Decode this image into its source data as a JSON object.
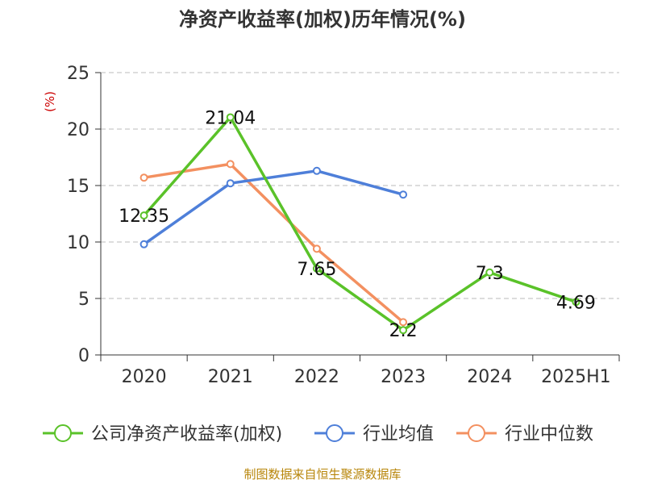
{
  "chart_data": {
    "type": "line",
    "title": "净资产收益率(加权)历年情况(%)",
    "ylabel": "(%)",
    "xlabel": "",
    "categories": [
      "2020",
      "2021",
      "2022",
      "2023",
      "2024",
      "2025H1"
    ],
    "ylim": [
      0,
      25
    ],
    "yticks": [
      0,
      5,
      10,
      15,
      20,
      25
    ],
    "grid": true,
    "legend_position": "bottom",
    "series": [
      {
        "name": "公司净资产收益率(加权)",
        "color": "#5ac229",
        "values": [
          12.35,
          21.04,
          7.65,
          2.2,
          7.3,
          4.69
        ],
        "data_labels": [
          "12.35",
          "21.04",
          "7.65",
          "2.2",
          "7.3",
          "4.69"
        ]
      },
      {
        "name": "行业均值",
        "color": "#4e7fd9",
        "values": [
          9.8,
          15.2,
          16.3,
          14.2,
          null,
          null
        ]
      },
      {
        "name": "行业中位数",
        "color": "#f39060",
        "values": [
          15.7,
          16.9,
          9.4,
          2.9,
          null,
          null
        ]
      }
    ]
  },
  "footer": {
    "source": "制图数据来自恒生聚源数据库"
  }
}
